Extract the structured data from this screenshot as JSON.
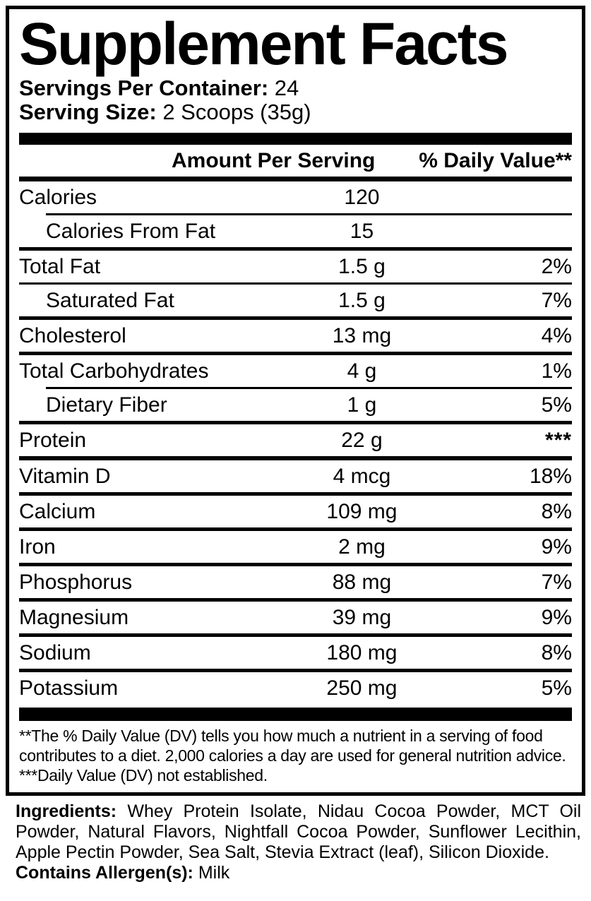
{
  "label": {
    "title": "Supplement Facts",
    "servings_per_container": {
      "label": "Servings Per Container:",
      "value": "24"
    },
    "serving_size": {
      "label": "Serving Size:",
      "value": "2 Scoops (35g)"
    },
    "column_headers": {
      "amount": "Amount Per Serving",
      "daily_value": "% Daily Value**"
    },
    "rows": [
      {
        "label": "Calories",
        "amount": "120",
        "dv": "",
        "indent": false,
        "sep": "indent"
      },
      {
        "label": "Calories From Fat",
        "amount": "15",
        "dv": "",
        "indent": true,
        "sep": "normal"
      },
      {
        "label": "Total Fat",
        "amount": "1.5 g",
        "dv": "2%",
        "indent": false,
        "sep": "light"
      },
      {
        "label": "Saturated Fat",
        "amount": "1.5 g",
        "dv": "7%",
        "indent": true,
        "sep": "normal"
      },
      {
        "label": "Cholesterol",
        "amount": "13 mg",
        "dv": "4%",
        "indent": false,
        "sep": "normal"
      },
      {
        "label": "Total Carbohydrates",
        "amount": "4 g",
        "dv": "1%",
        "indent": false,
        "sep": "indent"
      },
      {
        "label": "Dietary Fiber",
        "amount": "1 g",
        "dv": "5%",
        "indent": true,
        "sep": "normal"
      },
      {
        "label": "Protein",
        "amount": "22 g",
        "dv": "***",
        "indent": false,
        "sep": "heavy"
      },
      {
        "label": "Vitamin D",
        "amount": "4 mcg",
        "dv": "18%",
        "indent": false,
        "sep": "normal"
      },
      {
        "label": "Calcium",
        "amount": "109 mg",
        "dv": "8%",
        "indent": false,
        "sep": "normal"
      },
      {
        "label": "Iron",
        "amount": "2 mg",
        "dv": "9%",
        "indent": false,
        "sep": "normal"
      },
      {
        "label": "Phosphorus",
        "amount": "88 mg",
        "dv": "7%",
        "indent": false,
        "sep": "normal"
      },
      {
        "label": "Magnesium",
        "amount": "39 mg",
        "dv": "9%",
        "indent": false,
        "sep": "normal"
      },
      {
        "label": "Sodium",
        "amount": "180 mg",
        "dv": "8%",
        "indent": false,
        "sep": "normal"
      },
      {
        "label": "Potassium",
        "amount": "250 mg",
        "dv": "5%",
        "indent": false,
        "sep": "none"
      }
    ],
    "footnotes": [
      "**The % Daily Value (DV) tells you how much a nutrient in a serving of food contributes to a diet. 2,000 calories a day are used for general nutrition advice.",
      "***Daily Value (DV) not established."
    ]
  },
  "ingredients": {
    "label": "Ingredients:",
    "text": "Whey Protein Isolate, Nidau Cocoa Powder, MCT Oil Powder, Natural Flavors, Nightfall Cocoa Powder, Sunflower Lecithin, Apple Pectin Powder, Sea Salt, Stevia Extract (leaf), Silicon Dioxide."
  },
  "allergen": {
    "label": "Contains Allergen(s):",
    "value": "Milk"
  },
  "colors": {
    "foreground": "#000000",
    "background": "#ffffff"
  }
}
